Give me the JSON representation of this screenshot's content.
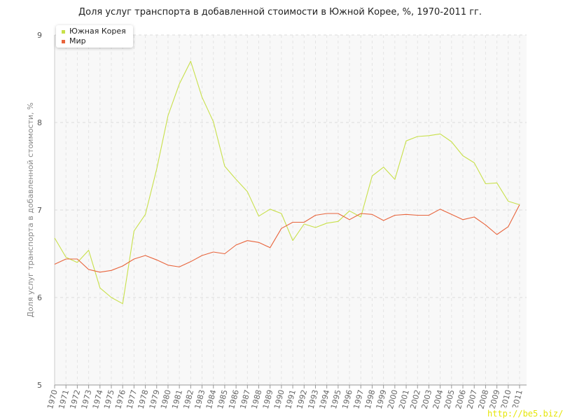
{
  "chart_data": {
    "type": "line",
    "title": "Доля услуг транспорта в добавленной стоимости в Южной Корее, %, 1970-2011 гг.",
    "xlabel": "",
    "ylabel": "Доля услуг транспорта в добавленной стоимости, %",
    "ylim": [
      5,
      9
    ],
    "yticks": [
      "5",
      "6",
      "7",
      "8",
      "9"
    ],
    "grid": true,
    "legend_position": "top-left",
    "categories": [
      "1970",
      "1971",
      "1972",
      "1973",
      "1974",
      "1975",
      "1976",
      "1977",
      "1978",
      "1979",
      "1980",
      "1981",
      "1982",
      "1983",
      "1984",
      "1985",
      "1986",
      "1987",
      "1988",
      "1989",
      "1990",
      "1991",
      "1992",
      "1993",
      "1994",
      "1995",
      "1996",
      "1997",
      "1998",
      "1999",
      "2000",
      "2001",
      "2002",
      "2003",
      "2004",
      "2005",
      "2006",
      "2007",
      "2008",
      "2009",
      "2010",
      "2011"
    ],
    "series": [
      {
        "name": "Южная Корея",
        "color": "#c8e04a",
        "values": [
          6.68,
          6.46,
          6.4,
          6.54,
          6.11,
          6.0,
          5.93,
          6.76,
          6.95,
          7.47,
          8.08,
          8.44,
          8.7,
          8.29,
          8.01,
          7.5,
          7.35,
          7.21,
          6.93,
          7.01,
          6.96,
          6.65,
          6.84,
          6.8,
          6.85,
          6.87,
          6.99,
          6.92,
          7.39,
          7.49,
          7.35,
          7.79,
          7.84,
          7.85,
          7.87,
          7.78,
          7.62,
          7.54,
          7.3,
          7.31,
          7.1,
          7.06
        ]
      },
      {
        "name": "Мир",
        "color": "#e8643c",
        "values": [
          6.38,
          6.44,
          6.44,
          6.32,
          6.29,
          6.31,
          6.36,
          6.44,
          6.48,
          6.43,
          6.37,
          6.35,
          6.41,
          6.48,
          6.52,
          6.5,
          6.6,
          6.65,
          6.63,
          6.57,
          6.79,
          6.86,
          6.86,
          6.94,
          6.96,
          6.96,
          6.89,
          6.96,
          6.95,
          6.88,
          6.94,
          6.95,
          6.94,
          6.94,
          7.01,
          6.95,
          6.89,
          6.92,
          6.83,
          6.72,
          6.81,
          7.06
        ]
      }
    ]
  },
  "watermark": "http://be5.biz/"
}
